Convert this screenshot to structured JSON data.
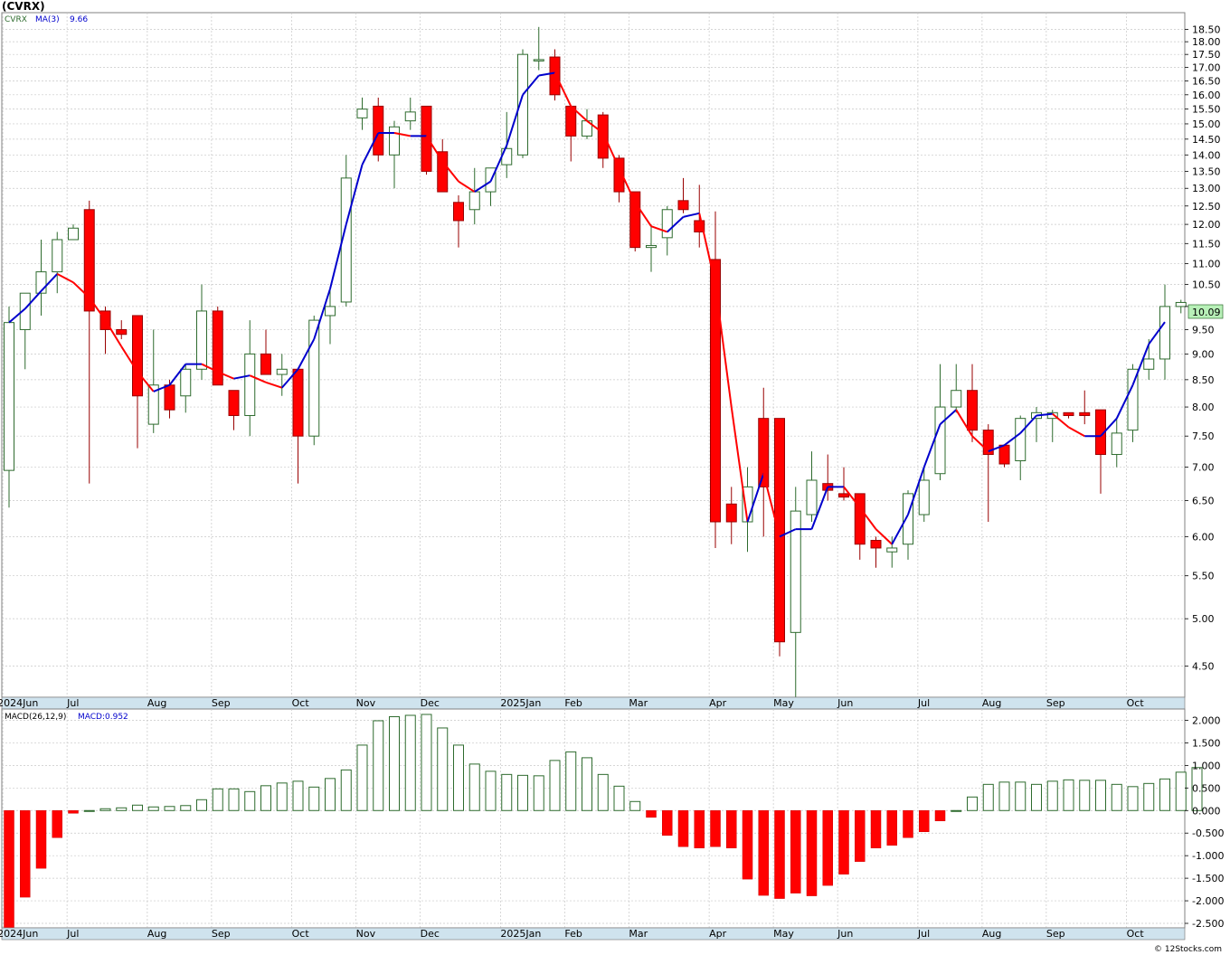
{
  "header": {
    "symbol_title": "(CVRX)",
    "legend_symbol": "CVRX",
    "legend_ma_label": "MA(3)",
    "legend_ma_value": "9.66",
    "macd_label": "MACD(26,12,9)",
    "macd_value_label": "MACD:0.952",
    "last_price": "10.09",
    "watermark": "© 12Stocks.com"
  },
  "colors": {
    "up_candle": "#2e6b2e",
    "down_candle": "#ff0000",
    "ma_up": "#0000cc",
    "ma_down": "#ff0000",
    "grid": "#c8c8c8",
    "axis_band": "#cfe3ee",
    "price_badge": "#b8f0b8"
  },
  "x_labels": [
    {
      "text": "2024Jun",
      "i": 0
    },
    {
      "text": "Jul",
      "i": 4
    },
    {
      "text": "Aug",
      "i": 9
    },
    {
      "text": "Sep",
      "i": 13
    },
    {
      "text": "Oct",
      "i": 18
    },
    {
      "text": "Nov",
      "i": 22
    },
    {
      "text": "Dec",
      "i": 26
    },
    {
      "text": "2025Jan",
      "i": 31
    },
    {
      "text": "Feb",
      "i": 35
    },
    {
      "text": "Mar",
      "i": 39
    },
    {
      "text": "Apr",
      "i": 44
    },
    {
      "text": "May",
      "i": 48
    },
    {
      "text": "Jun",
      "i": 52
    },
    {
      "text": "Jul",
      "i": 57
    },
    {
      "text": "Aug",
      "i": 61
    },
    {
      "text": "Sep",
      "i": 65
    },
    {
      "text": "Oct",
      "i": 70
    }
  ],
  "chart_data": [
    {
      "type": "candlestick",
      "title": "(CVRX)",
      "scale": "log",
      "ylim": [
        4.2,
        19.2
      ],
      "yticks": [
        4.5,
        5.0,
        5.5,
        6.0,
        6.5,
        7.0,
        7.5,
        8.0,
        8.5,
        9.0,
        9.5,
        10.0,
        10.5,
        11.0,
        11.5,
        12.0,
        12.5,
        13.0,
        13.5,
        14.0,
        14.5,
        15.0,
        15.5,
        16.0,
        16.5,
        17.0,
        17.5,
        18.0,
        18.5
      ],
      "ytick_labels": [
        "4.50",
        "5.00",
        "5.50",
        "6.00",
        "6.50",
        "7.00",
        "7.50",
        "8.00",
        "8.50",
        "9.00",
        "9.50",
        "",
        "10.50",
        "11.00",
        "11.50",
        "12.00",
        "12.50",
        "13.00",
        "13.50",
        "14.00",
        "14.50",
        "15.00",
        "15.50",
        "16.00",
        "16.50",
        "17.00",
        "17.50",
        "18.00",
        "18.50"
      ],
      "ohlc": [
        [
          6.95,
          10.0,
          6.4,
          9.65
        ],
        [
          9.5,
          10.3,
          8.7,
          10.3
        ],
        [
          10.3,
          11.6,
          9.8,
          10.8
        ],
        [
          10.8,
          11.8,
          10.3,
          11.6
        ],
        [
          11.6,
          12.0,
          11.6,
          11.9
        ],
        [
          12.4,
          12.65,
          6.75,
          9.9
        ],
        [
          9.9,
          10.0,
          9.0,
          9.5
        ],
        [
          9.5,
          9.7,
          9.3,
          9.4
        ],
        [
          9.8,
          9.8,
          7.3,
          8.2
        ],
        [
          7.7,
          9.5,
          7.55,
          8.4
        ],
        [
          8.4,
          8.5,
          7.8,
          7.95
        ],
        [
          8.2,
          8.8,
          7.9,
          8.7
        ],
        [
          8.7,
          10.5,
          8.5,
          9.9
        ],
        [
          9.9,
          10.0,
          8.4,
          8.4
        ],
        [
          8.3,
          8.3,
          7.6,
          7.85
        ],
        [
          7.85,
          9.7,
          7.5,
          9.0
        ],
        [
          9.0,
          9.5,
          8.6,
          8.6
        ],
        [
          8.6,
          9.0,
          8.2,
          8.7
        ],
        [
          8.7,
          8.7,
          6.75,
          7.5
        ],
        [
          7.5,
          9.8,
          7.35,
          9.7
        ],
        [
          9.8,
          10.4,
          9.2,
          10.0
        ],
        [
          10.1,
          14.0,
          10.0,
          13.3
        ],
        [
          15.2,
          15.9,
          14.8,
          15.5
        ],
        [
          15.6,
          15.9,
          13.8,
          14.0
        ],
        [
          14.0,
          15.1,
          13.0,
          14.9
        ],
        [
          15.1,
          15.9,
          14.8,
          15.4
        ],
        [
          15.6,
          15.6,
          13.4,
          13.5
        ],
        [
          14.1,
          14.5,
          12.9,
          12.9
        ],
        [
          12.6,
          12.8,
          11.4,
          12.1
        ],
        [
          12.4,
          13.6,
          12.0,
          12.9
        ],
        [
          12.9,
          13.6,
          12.5,
          13.6
        ],
        [
          13.7,
          15.4,
          13.3,
          14.2
        ],
        [
          14.0,
          17.7,
          13.9,
          17.5
        ],
        [
          17.3,
          18.6,
          16.9,
          17.3
        ],
        [
          17.4,
          17.7,
          15.8,
          16.0
        ],
        [
          15.6,
          15.6,
          13.8,
          14.6
        ],
        [
          14.6,
          15.5,
          14.5,
          15.1
        ],
        [
          15.3,
          15.4,
          13.6,
          13.9
        ],
        [
          13.9,
          14.0,
          12.6,
          12.9
        ],
        [
          12.9,
          12.9,
          11.3,
          11.4
        ],
        [
          11.4,
          12.0,
          10.8,
          11.45
        ],
        [
          11.65,
          12.5,
          11.2,
          12.4
        ],
        [
          12.65,
          13.3,
          12.3,
          12.4
        ],
        [
          12.1,
          13.1,
          11.4,
          11.8
        ],
        [
          11.1,
          12.35,
          5.85,
          6.2
        ],
        [
          6.45,
          6.7,
          5.9,
          6.2
        ],
        [
          6.2,
          7.0,
          5.8,
          6.7
        ],
        [
          7.8,
          8.35,
          6.0,
          6.7
        ],
        [
          7.8,
          7.8,
          4.6,
          4.75
        ],
        [
          4.85,
          6.7,
          4.1,
          6.35
        ],
        [
          6.3,
          7.25,
          6.2,
          6.8
        ],
        [
          6.75,
          7.2,
          6.5,
          6.65
        ],
        [
          6.6,
          7.0,
          6.5,
          6.55
        ],
        [
          6.6,
          6.6,
          5.7,
          5.9
        ],
        [
          5.95,
          6.0,
          5.6,
          5.85
        ],
        [
          5.8,
          6.0,
          5.6,
          5.85
        ],
        [
          5.9,
          6.65,
          5.7,
          6.6
        ],
        [
          6.3,
          7.0,
          6.2,
          6.8
        ],
        [
          6.9,
          8.8,
          6.8,
          8.0
        ],
        [
          8.0,
          8.8,
          7.9,
          8.3
        ],
        [
          8.3,
          8.8,
          7.4,
          7.6
        ],
        [
          7.6,
          7.7,
          6.2,
          7.2
        ],
        [
          7.35,
          7.35,
          7.0,
          7.05
        ],
        [
          7.1,
          7.85,
          6.8,
          7.8
        ],
        [
          7.8,
          8.0,
          7.4,
          7.9
        ],
        [
          7.8,
          7.95,
          7.4,
          7.9
        ],
        [
          7.9,
          7.9,
          7.8,
          7.85
        ],
        [
          7.9,
          8.3,
          7.7,
          7.85
        ],
        [
          7.95,
          7.95,
          6.6,
          7.2
        ],
        [
          7.2,
          7.8,
          7.0,
          7.55
        ],
        [
          7.6,
          8.8,
          7.4,
          8.7
        ],
        [
          8.7,
          9.3,
          8.5,
          8.9
        ],
        [
          8.9,
          10.5,
          8.5,
          10.0
        ],
        [
          10.0,
          10.15,
          9.85,
          10.09
        ]
      ],
      "ma3": [
        null,
        null,
        9.65,
        9.95,
        10.35,
        10.75,
        10.55,
        10.2,
        9.7,
        9.15,
        8.65,
        8.28,
        8.4,
        8.8,
        8.8,
        8.65,
        8.52,
        8.58,
        8.45,
        8.35,
        8.7,
        9.3,
        10.4,
        12.0,
        13.7,
        14.7,
        14.7,
        14.6,
        14.6,
        13.8,
        13.2,
        12.9,
        13.2,
        14.3,
        16.0,
        16.7,
        16.8,
        15.6,
        15.1,
        14.7,
        13.6,
        12.6,
        11.95,
        11.8,
        12.2,
        12.3,
        10.5,
        8.0,
        6.2,
        6.9,
        6.0,
        6.1,
        6.1,
        6.7,
        6.7,
        6.4,
        6.1,
        5.9,
        6.3,
        7.0,
        7.7,
        7.95,
        7.5,
        7.25,
        7.35,
        7.55,
        7.85,
        7.88,
        7.65,
        7.5,
        7.5,
        7.8,
        8.4,
        9.2,
        9.66
      ],
      "ma3_note": "index 0 corresponds to candle index -2 (first line point sits on first candle)"
    },
    {
      "type": "bar",
      "title": "MACD(26,12,9)",
      "ylim": [
        -2.6,
        2.25
      ],
      "yticks": [
        -2.5,
        -2.0,
        -1.5,
        -1.0,
        -0.5,
        0.0,
        0.5,
        1.0,
        1.5,
        2.0
      ],
      "ytick_labels": [
        "-2.500",
        "-2.000",
        "-1.500",
        "-1.000",
        "-0.500",
        "0.000",
        "0.500",
        "1.000",
        "1.500",
        "2.000"
      ],
      "values": [
        -2.6,
        -1.92,
        -1.28,
        -0.6,
        -0.06,
        0.0,
        0.04,
        0.06,
        0.12,
        0.08,
        0.09,
        0.11,
        0.24,
        0.48,
        0.48,
        0.42,
        0.55,
        0.61,
        0.65,
        0.52,
        0.71,
        0.9,
        1.45,
        1.99,
        2.08,
        2.11,
        2.13,
        1.83,
        1.45,
        1.03,
        0.87,
        0.8,
        0.78,
        0.77,
        1.11,
        1.3,
        1.17,
        0.8,
        0.54,
        0.2,
        -0.15,
        -0.55,
        -0.8,
        -0.83,
        -0.8,
        -0.83,
        -1.52,
        -1.88,
        -1.95,
        -1.83,
        -1.89,
        -1.66,
        -1.41,
        -1.13,
        -0.83,
        -0.77,
        -0.6,
        -0.47,
        -0.23,
        0.0,
        0.3,
        0.58,
        0.63,
        0.63,
        0.58,
        0.65,
        0.68,
        0.67,
        0.67,
        0.58,
        0.53,
        0.6,
        0.7,
        0.85,
        0.952
      ]
    }
  ]
}
